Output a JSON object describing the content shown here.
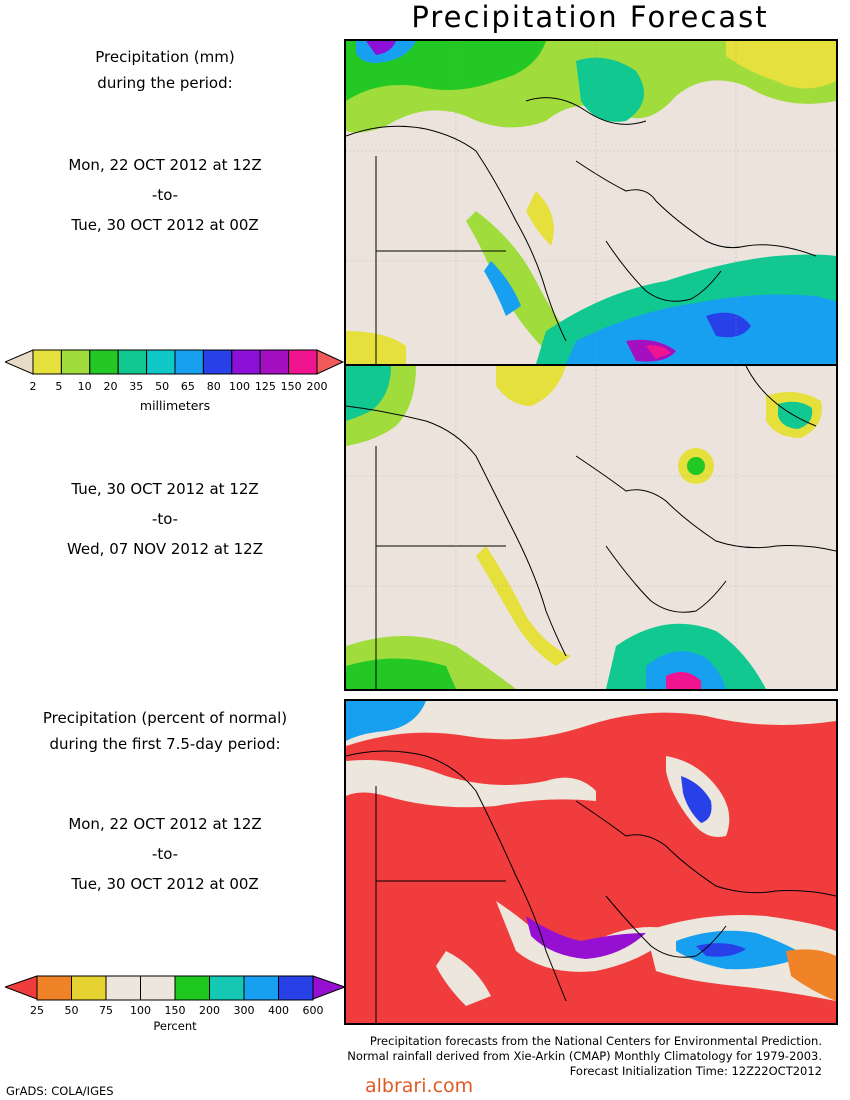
{
  "title": "Precipitation Forecast",
  "panel1": {
    "heading_line1": "Precipitation (mm)",
    "heading_line2": "during the period:",
    "date_from": "Mon, 22 OCT 2012 at 12Z",
    "date_to_sep": "-to-",
    "date_to": "Tue, 30 OCT 2012 at 00Z"
  },
  "panel2": {
    "date_from": "Tue, 30 OCT 2012 at 12Z",
    "date_to_sep": "-to-",
    "date_to": "Wed, 07 NOV 2012 at 12Z"
  },
  "panel3": {
    "heading_line1": "Precipitation (percent of normal)",
    "heading_line2": "during the first 7.5-day period:",
    "date_from": "Mon, 22 OCT 2012 at 12Z",
    "date_to_sep": "-to-",
    "date_to": "Tue, 30 OCT 2012 at 00Z"
  },
  "colorbar_mm": {
    "unit_label": "millimeters",
    "ticks": [
      "2",
      "5",
      "10",
      "20",
      "35",
      "50",
      "65",
      "80",
      "100",
      "125",
      "150",
      "200"
    ],
    "colors": [
      "#e8dcc8",
      "#e6e03c",
      "#a0dc3c",
      "#24c824",
      "#10c890",
      "#10c8c8",
      "#18a0f0",
      "#2840e8",
      "#8c10d8",
      "#a410c0",
      "#f01490",
      "#f05a5a"
    ]
  },
  "colorbar_pct": {
    "unit_label": "Percent",
    "ticks": [
      "25",
      "50",
      "75",
      "100",
      "150",
      "200",
      "300",
      "400",
      "600"
    ],
    "colors": [
      "#f03c3c",
      "#f08228",
      "#e6d230",
      "#ece6dc",
      "#ece6dc",
      "#1ec81e",
      "#14c8b4",
      "#18a0f0",
      "#2840e8",
      "#9610d2"
    ]
  },
  "map_colors": {
    "land": "#ece4dc",
    "pct_dry": "#f03c3c"
  },
  "footer": {
    "line1": "Precipitation forecasts from the National Centers for Environmental Prediction.",
    "line2": "Normal rainfall derived from Xie-Arkin (CMAP) Monthly Climatology for 1979-2003.",
    "line3": "Forecast Initialization Time: 12Z22OCT2012"
  },
  "credit": "GrADS: COLA/IGES",
  "watermark": "albrari.com"
}
